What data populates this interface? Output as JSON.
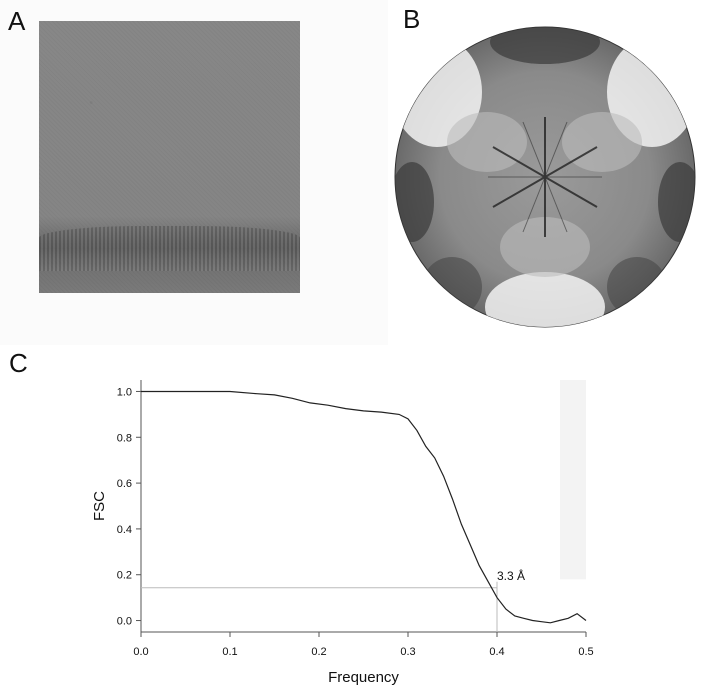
{
  "panels": {
    "a": "A",
    "b": "B",
    "c": "C"
  },
  "fsc_annotation": "3.3 Å",
  "chart_data": {
    "type": "line",
    "xlabel": "Frequency",
    "ylabel": "FSC",
    "xlim": [
      0.0,
      0.5
    ],
    "ylim": [
      -0.05,
      1.05
    ],
    "xticks": [
      "0.0",
      "0.1",
      "0.2",
      "0.3",
      "0.4",
      "0.5"
    ],
    "yticks": [
      "0.0",
      "0.2",
      "0.4",
      "0.6",
      "0.8",
      "1.0"
    ],
    "threshold": {
      "x": 0.4,
      "y": 0.143,
      "label": "3.3 Å"
    },
    "grid": false,
    "series": [
      {
        "x": [
          0.0,
          0.05,
          0.1,
          0.13,
          0.15,
          0.17,
          0.19,
          0.21,
          0.23,
          0.25,
          0.27,
          0.29,
          0.3,
          0.31,
          0.32,
          0.33,
          0.34,
          0.35,
          0.36,
          0.37,
          0.38,
          0.39,
          0.4,
          0.41,
          0.42,
          0.43,
          0.44,
          0.45,
          0.46,
          0.47,
          0.48,
          0.49,
          0.5
        ],
        "y": [
          1.0,
          1.0,
          1.0,
          0.99,
          0.985,
          0.97,
          0.95,
          0.94,
          0.925,
          0.915,
          0.91,
          0.9,
          0.88,
          0.83,
          0.76,
          0.71,
          0.63,
          0.53,
          0.42,
          0.33,
          0.24,
          0.17,
          0.1,
          0.05,
          0.02,
          0.01,
          0.0,
          -0.005,
          -0.01,
          0.0,
          0.01,
          0.03,
          0.0
        ]
      }
    ]
  }
}
